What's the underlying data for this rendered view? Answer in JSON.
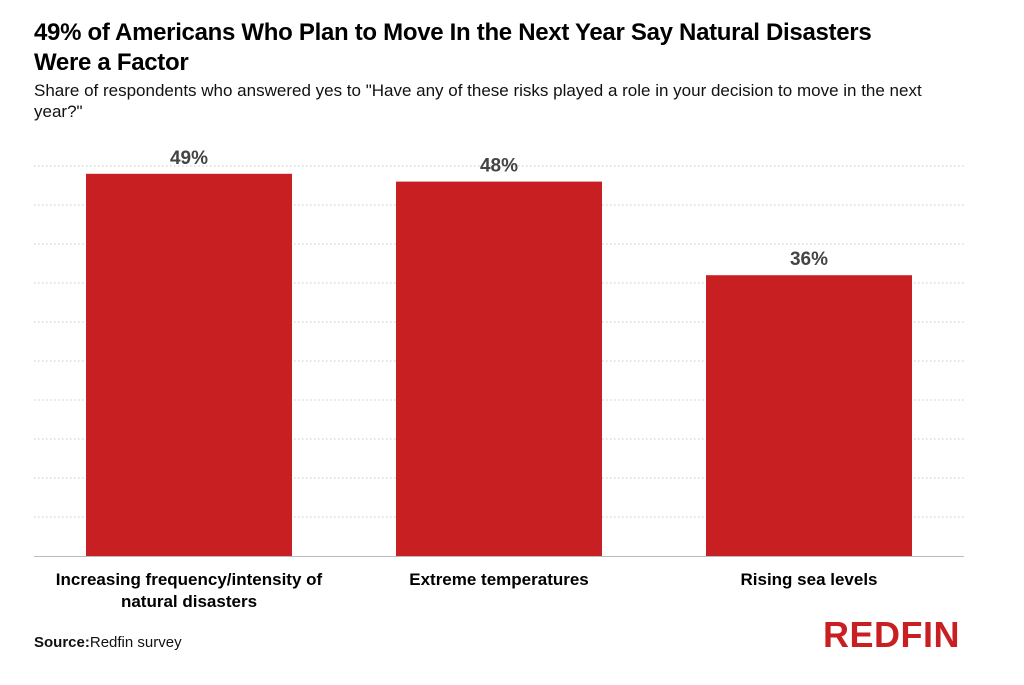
{
  "chart_data": {
    "type": "bar",
    "title": "49% of Americans Who Plan to Move In the Next Year Say Natural Disasters Were a Factor",
    "subtitle": "Share of respondents who answered yes to \"Have any of these risks played a role in your decision to move in the next year?\"",
    "categories": [
      "Increasing frequency/intensity of natural disasters",
      "Extreme temperatures",
      "Rising sea levels"
    ],
    "values": [
      49,
      48,
      36
    ],
    "data_labels": [
      "49%",
      "48%",
      "36%"
    ],
    "ylim": [
      0,
      50
    ],
    "grid": true,
    "grid_style": "dotted horizontal",
    "bar_color": "#c82022",
    "xlabel": "",
    "ylabel": ""
  },
  "footer": {
    "source_label": "Source:",
    "source_text": "Redfin survey",
    "logo_text": "REDFIN"
  },
  "colors": {
    "bar": "#c82022",
    "logo": "#c82022",
    "grid": "#c8c8c8",
    "axis": "#bbbbbb",
    "data_label": "#444444"
  }
}
